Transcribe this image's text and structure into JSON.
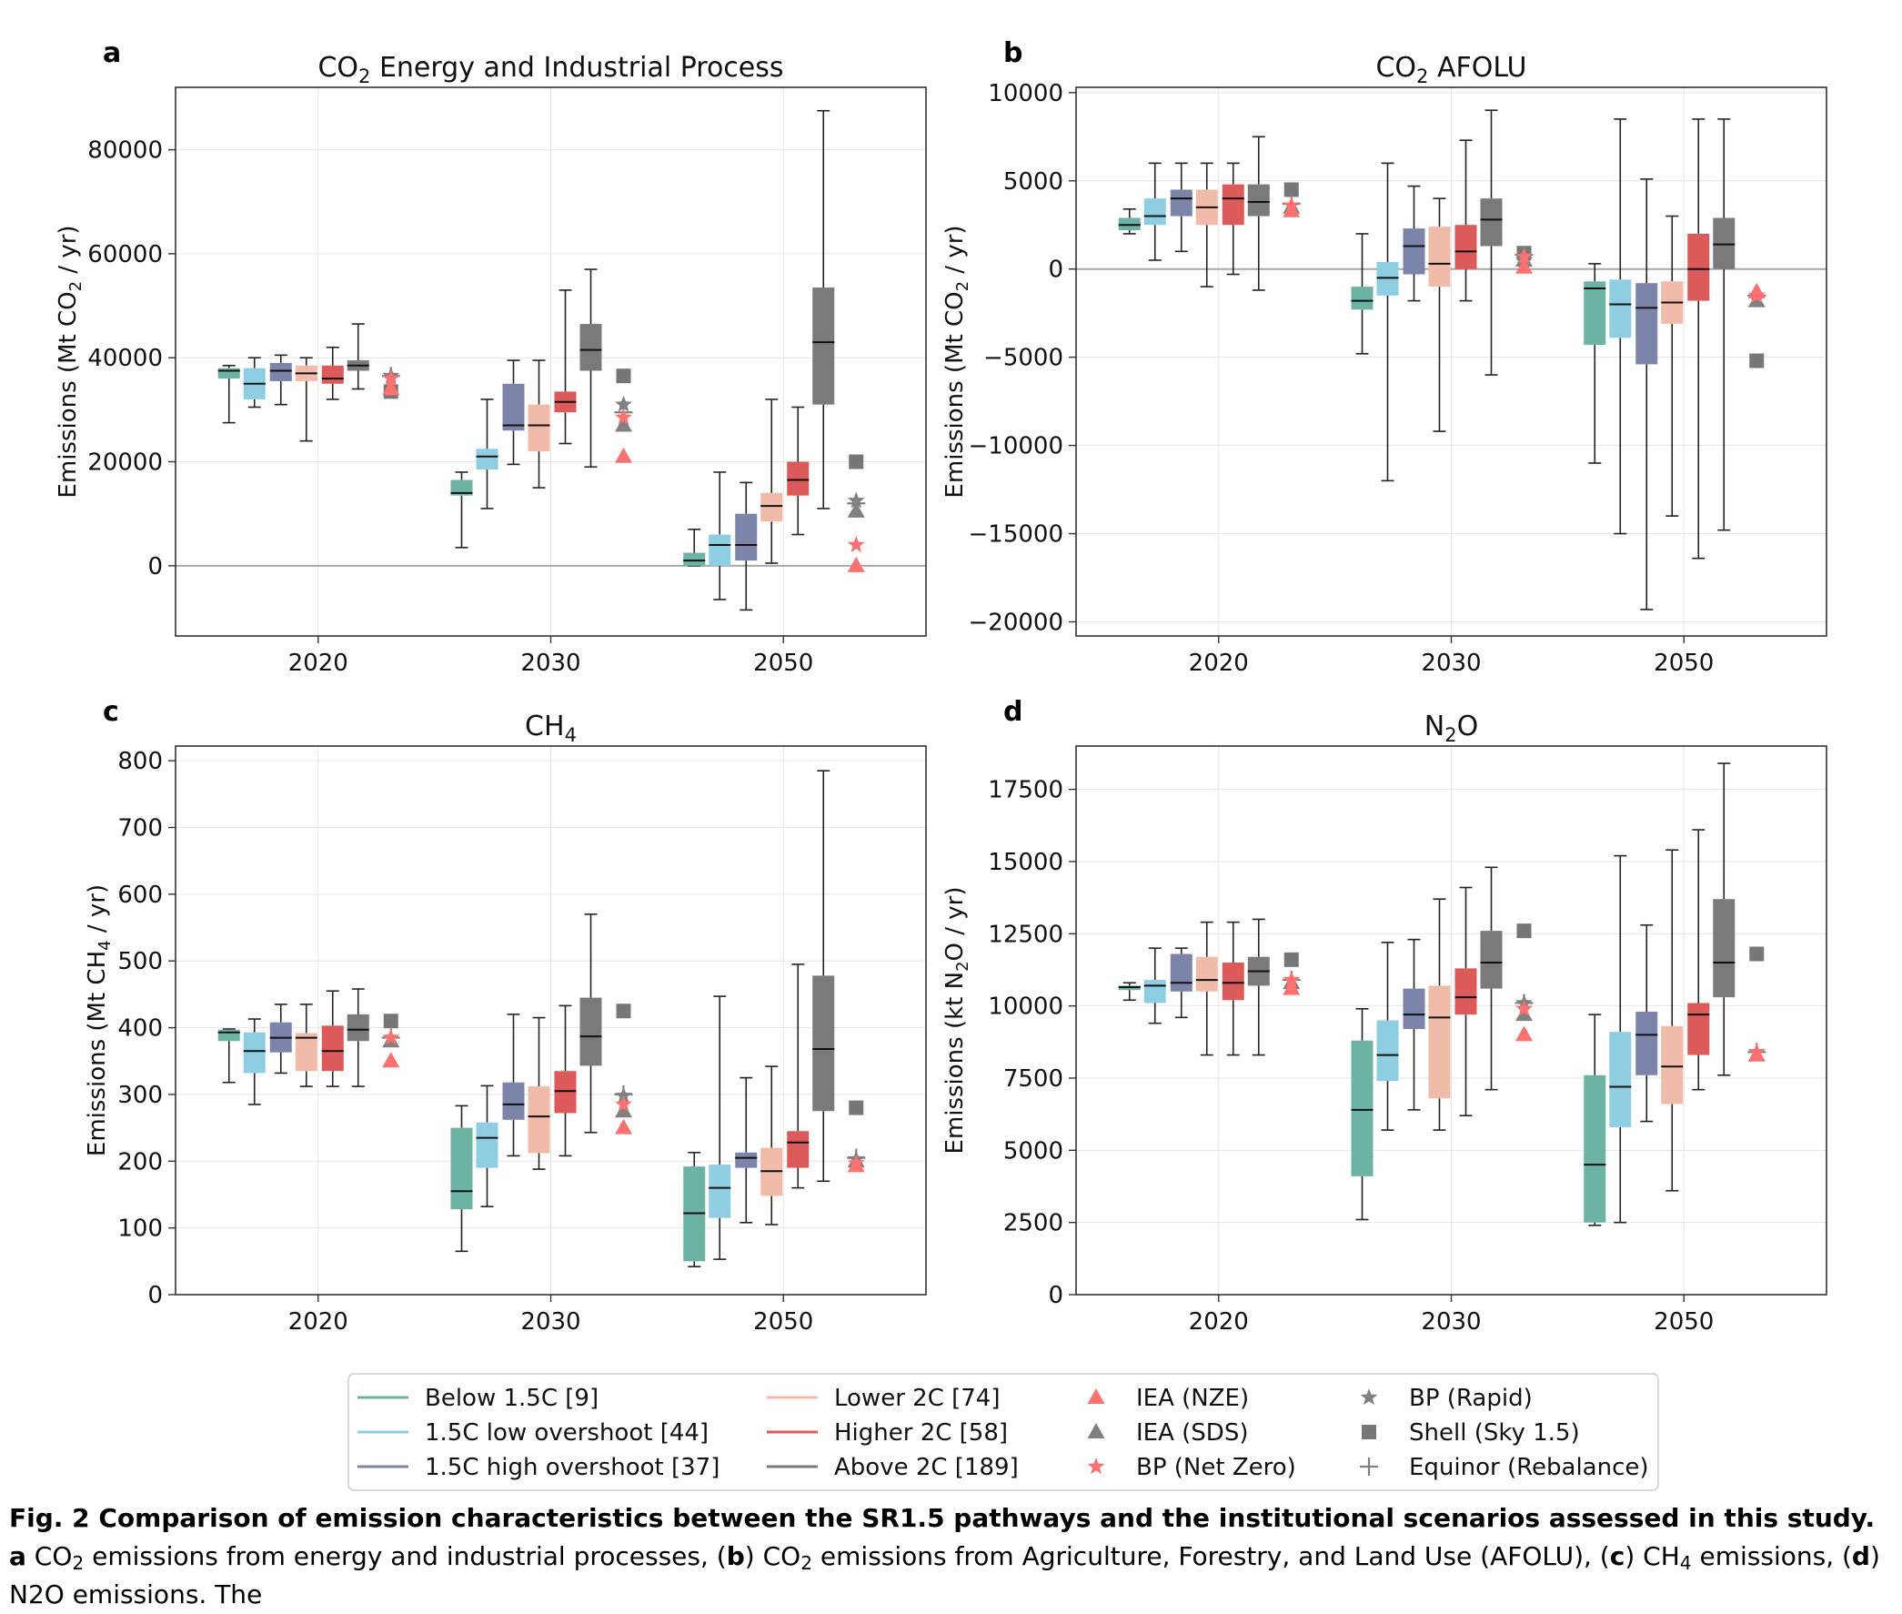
{
  "categories": [
    "Below 1.5C",
    "1.5C low overshoot",
    "1.5C high overshoot",
    "Lower 2C",
    "Higher 2C",
    "Above 2C"
  ],
  "category_colors": [
    "#6db3a3",
    "#8fcde3",
    "#7c84aa",
    "#f1bba9",
    "#dc5a5a",
    "#7a7a7a"
  ],
  "legend": {
    "categories": [
      "Below 1.5C [9]",
      "1.5C low overshoot [44]",
      "1.5C high overshoot [37]",
      "Lower 2C [74]",
      "Higher 2C [58]",
      "Above 2C [189]"
    ],
    "scenarios": [
      {
        "label": "IEA (NZE)",
        "marker": "triangle",
        "color": "#ff7070"
      },
      {
        "label": "IEA (SDS)",
        "marker": "triangle",
        "color": "#808080"
      },
      {
        "label": "BP (Net Zero)",
        "marker": "star",
        "color": "#ff7070"
      },
      {
        "label": "BP (Rapid)",
        "marker": "star",
        "color": "#808080"
      },
      {
        "label": "Shell (Sky 1.5)",
        "marker": "square",
        "color": "#777777"
      },
      {
        "label": "Equinor (Rebalance)",
        "marker": "plus",
        "color": "#808080"
      }
    ]
  },
  "chart_data": [
    {
      "panel_letter": "a",
      "type": "box",
      "title_main": "CO",
      "title_sub": "2",
      "title_rest": " Energy and Industrial Process",
      "ylabel_main": "Emissions (Mt CO",
      "ylabel_sub": "2",
      "ylabel_rest": " / yr)",
      "ylim": [
        -13500,
        92000
      ],
      "yticks": [
        0,
        20000,
        40000,
        60000,
        80000
      ],
      "ytick_labels": [
        "0",
        "20000",
        "40000",
        "60000",
        "80000"
      ],
      "groups": [
        "2020",
        "2030",
        "2050"
      ],
      "boxes": {
        "2020": [
          [
            27500,
            36000,
            37500,
            38000,
            38500
          ],
          [
            30500,
            32000,
            35000,
            38000,
            40000
          ],
          [
            31000,
            35500,
            37500,
            39000,
            40500
          ],
          [
            24000,
            35500,
            37000,
            38500,
            40000
          ],
          [
            32000,
            35000,
            36000,
            38500,
            42000
          ],
          [
            34000,
            37500,
            38500,
            39500,
            46500
          ]
        ],
        "2030": [
          [
            3500,
            13500,
            14000,
            16500,
            18000
          ],
          [
            11000,
            18500,
            21000,
            22500,
            32000
          ],
          [
            19500,
            26000,
            27000,
            35000,
            39500
          ],
          [
            15000,
            22000,
            27000,
            31000,
            39500
          ],
          [
            23500,
            29500,
            31500,
            33500,
            53000
          ],
          [
            19000,
            37500,
            41500,
            46500,
            57000
          ]
        ],
        "2050": [
          [
            0,
            0,
            1000,
            2500,
            7000
          ],
          [
            -6500,
            0,
            4000,
            6000,
            18000
          ],
          [
            -8500,
            1000,
            4000,
            10000,
            16000
          ],
          [
            500,
            8500,
            11500,
            14000,
            32000
          ],
          [
            6000,
            13500,
            16500,
            20000,
            30500
          ],
          [
            11000,
            31000,
            43000,
            53500,
            87500
          ]
        ]
      },
      "scenarios": {
        "2020": {
          "IEA (NZE)": 34000,
          "IEA (SDS)": 34000,
          "BP (Net Zero)": 36000,
          "BP (Rapid)": 36500,
          "Shell (Sky 1.5)": 33500,
          "Equinor (Rebalance)": 36500
        },
        "2030": {
          "IEA (NZE)": 21000,
          "IEA (SDS)": 27000,
          "BP (Net Zero)": 28500,
          "BP (Rapid)": 31000,
          "Shell (Sky 1.5)": 36500,
          "Equinor (Rebalance)": 29500
        },
        "2050": {
          "IEA (NZE)": 0,
          "IEA (SDS)": 10500,
          "BP (Net Zero)": 4000,
          "BP (Rapid)": 12500,
          "Shell (Sky 1.5)": 20000,
          "Equinor (Rebalance)": 12000
        }
      }
    },
    {
      "panel_letter": "b",
      "type": "box",
      "title_main": "CO",
      "title_sub": "2",
      "title_rest": " AFOLU",
      "ylabel_main": "Emissions (Mt CO",
      "ylabel_sub": "2",
      "ylabel_rest": " / yr)",
      "ylim": [
        -20800,
        10300
      ],
      "yticks": [
        -20000,
        -15000,
        -10000,
        -5000,
        0,
        5000,
        10000
      ],
      "ytick_labels": [
        "−20000",
        "−15000",
        "−10000",
        "−5000",
        "0",
        "5000",
        "10000"
      ],
      "groups": [
        "2020",
        "2030",
        "2050"
      ],
      "boxes": {
        "2020": [
          [
            2000,
            2200,
            2500,
            2900,
            3400
          ],
          [
            500,
            2500,
            3000,
            4000,
            6000
          ],
          [
            1000,
            3000,
            4000,
            4500,
            6000
          ],
          [
            -1000,
            2500,
            3500,
            4500,
            6000
          ],
          [
            -300,
            2500,
            4000,
            4800,
            6000
          ],
          [
            -1200,
            3000,
            3800,
            4800,
            7500
          ]
        ],
        "2030": [
          [
            -4800,
            -2300,
            -1800,
            -1000,
            2000
          ],
          [
            -12000,
            -1500,
            -500,
            400,
            6000
          ],
          [
            -1800,
            -300,
            1300,
            2300,
            4700
          ],
          [
            -9200,
            -1000,
            300,
            2400,
            4000
          ],
          [
            -1800,
            0,
            1000,
            2500,
            7300
          ],
          [
            -6000,
            1300,
            2800,
            4000,
            9000
          ]
        ],
        "2050": [
          [
            -11000,
            -4300,
            -1100,
            -700,
            300
          ],
          [
            -15000,
            -3900,
            -2000,
            -600,
            8500
          ],
          [
            -19300,
            -5400,
            -2200,
            -800,
            5100
          ],
          [
            -14000,
            -3100,
            -1900,
            -700,
            3000
          ],
          [
            -16400,
            -1800,
            0,
            2000,
            8500
          ],
          [
            -14800,
            0,
            1400,
            2900,
            8500
          ]
        ]
      },
      "scenarios": {
        "2020": {
          "IEA (NZE)": 3300,
          "IEA (SDS)": 3500,
          "BP (Net Zero)": 3600,
          "BP (Rapid)": 3600,
          "Shell (Sky 1.5)": 4500,
          "Equinor (Rebalance)": 3700
        },
        "2030": {
          "IEA (NZE)": 100,
          "IEA (SDS)": 500,
          "BP (Net Zero)": 700,
          "BP (Rapid)": 500,
          "Shell (Sky 1.5)": 900,
          "Equinor (Rebalance)": 800
        },
        "2050": {
          "IEA (NZE)": -1300,
          "IEA (SDS)": -1800,
          "BP (Net Zero)": -1500,
          "BP (Rapid)": -1700,
          "Shell (Sky 1.5)": -5200,
          "Equinor (Rebalance)": -1500
        }
      }
    },
    {
      "panel_letter": "c",
      "type": "box",
      "title_main": "CH",
      "title_sub": "4",
      "title_rest": "",
      "ylabel_main": "Emissions (Mt CH",
      "ylabel_sub": "4",
      "ylabel_rest": " / yr)",
      "ylim": [
        0,
        822
      ],
      "yticks": [
        0,
        100,
        200,
        300,
        400,
        500,
        600,
        700,
        800
      ],
      "ytick_labels": [
        "0",
        "100",
        "200",
        "300",
        "400",
        "500",
        "600",
        "700",
        "800"
      ],
      "groups": [
        "2020",
        "2030",
        "2050"
      ],
      "boxes": {
        "2020": [
          [
            318,
            380,
            393,
            397,
            398
          ],
          [
            285,
            332,
            365,
            393,
            413
          ],
          [
            332,
            363,
            385,
            408,
            435
          ],
          [
            312,
            335,
            385,
            392,
            435
          ],
          [
            312,
            335,
            365,
            403,
            455
          ],
          [
            312,
            380,
            397,
            420,
            458
          ]
        ],
        "2030": [
          [
            65,
            128,
            155,
            250,
            283
          ],
          [
            132,
            190,
            235,
            258,
            313
          ],
          [
            208,
            262,
            285,
            318,
            420
          ],
          [
            188,
            212,
            267,
            312,
            415
          ],
          [
            208,
            272,
            305,
            335,
            433
          ],
          [
            243,
            343,
            387,
            445,
            570
          ]
        ],
        "2050": [
          [
            42,
            50,
            122,
            192,
            213
          ],
          [
            53,
            115,
            160,
            195,
            447
          ],
          [
            108,
            190,
            205,
            213,
            325
          ],
          [
            105,
            148,
            185,
            220,
            342
          ],
          [
            160,
            190,
            228,
            245,
            495
          ],
          [
            170,
            275,
            368,
            478,
            785
          ]
        ]
      },
      "scenarios": {
        "2020": {
          "IEA (NZE)": 350,
          "IEA (SDS)": 380,
          "BP (Net Zero)": 385,
          "BP (Rapid)": 385,
          "Shell (Sky 1.5)": 410,
          "Equinor (Rebalance)": 385
        },
        "2030": {
          "IEA (NZE)": 250,
          "IEA (SDS)": 275,
          "BP (Net Zero)": 285,
          "BP (Rapid)": 298,
          "Shell (Sky 1.5)": 425,
          "Equinor (Rebalance)": 300
        },
        "2050": {
          "IEA (NZE)": 193,
          "IEA (SDS)": 200,
          "BP (Net Zero)": 197,
          "BP (Rapid)": 203,
          "Shell (Sky 1.5)": 280,
          "Equinor (Rebalance)": 205
        }
      }
    },
    {
      "panel_letter": "d",
      "type": "box",
      "title_main": "N",
      "title_sub": "2",
      "title_rest": "O",
      "ylabel_main": "Emissions (kt N",
      "ylabel_sub": "2",
      "ylabel_rest": "O / yr)",
      "ylim": [
        0,
        19000
      ],
      "yticks": [
        0,
        2500,
        5000,
        7500,
        10000,
        12500,
        15000,
        17500
      ],
      "ytick_labels": [
        "0",
        "2500",
        "5000",
        "7500",
        "10000",
        "12500",
        "15000",
        "17500"
      ],
      "groups": [
        "2020",
        "2030",
        "2050"
      ],
      "boxes": {
        "2020": [
          [
            10200,
            10550,
            10650,
            10700,
            10800
          ],
          [
            9400,
            10100,
            10700,
            10900,
            12000
          ],
          [
            9600,
            10500,
            10800,
            11800,
            12000
          ],
          [
            8300,
            10500,
            10900,
            11700,
            12900
          ],
          [
            8300,
            10200,
            10800,
            11500,
            12900
          ],
          [
            8300,
            10700,
            11200,
            11700,
            13000
          ]
        ],
        "2030": [
          [
            2600,
            4100,
            6400,
            8800,
            9900
          ],
          [
            5700,
            7400,
            8300,
            9500,
            12200
          ],
          [
            6400,
            9200,
            9700,
            10600,
            12300
          ],
          [
            5700,
            6800,
            9600,
            10700,
            13700
          ],
          [
            6200,
            9700,
            10300,
            11300,
            14100
          ],
          [
            7100,
            10600,
            11500,
            12600,
            14800
          ]
        ],
        "2050": [
          [
            2400,
            2500,
            4500,
            7600,
            9700
          ],
          [
            2500,
            5800,
            7200,
            9100,
            15200
          ],
          [
            6000,
            7600,
            9000,
            9800,
            12800
          ],
          [
            3600,
            6600,
            7900,
            9300,
            15400
          ],
          [
            7100,
            8300,
            9700,
            10100,
            16100
          ],
          [
            7600,
            10300,
            11500,
            13700,
            18400
          ]
        ]
      },
      "scenarios": {
        "2020": {
          "IEA (NZE)": 10600,
          "IEA (SDS)": 10800,
          "BP (Net Zero)": 10900,
          "BP (Rapid)": 10900,
          "Shell (Sky 1.5)": 11600,
          "Equinor (Rebalance)": 10900
        },
        "2030": {
          "IEA (NZE)": 9000,
          "IEA (SDS)": 9700,
          "BP (Net Zero)": 9900,
          "BP (Rapid)": 10100,
          "Shell (Sky 1.5)": 12600,
          "Equinor (Rebalance)": 10100
        },
        "2050": {
          "IEA (NZE)": 8300,
          "IEA (SDS)": 8300,
          "BP (Net Zero)": 8400,
          "BP (Rapid)": 8400,
          "Shell (Sky 1.5)": 11800,
          "Equinor (Rebalance)": 8400
        }
      }
    }
  ],
  "caption": {
    "bold": "Fig. 2 Comparison of emission characteristics between the SR1.5 pathways and the institutional scenarios assessed in this study.",
    "panel_a": "a",
    "text1": " CO",
    "sub1": "2",
    "text2": " emissions from energy and industrial processes, (",
    "panel_b": "b",
    "text3": ") CO",
    "sub2": "2",
    "text4": " emissions from Agriculture, Forestry, and Land Use (AFOLU), (",
    "panel_c": "c",
    "text5": ") CH",
    "sub3": "4",
    "text6": " emissions, (",
    "panel_d": "d",
    "text7": ") N2O emissions. The"
  }
}
